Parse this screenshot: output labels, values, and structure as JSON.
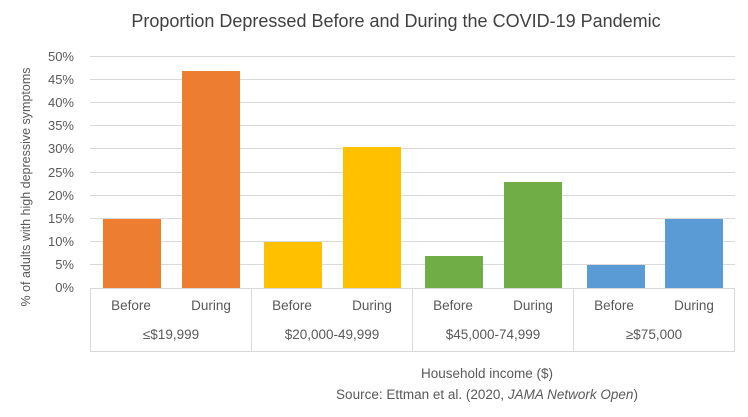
{
  "chart": {
    "title": "Proportion Depressed Before and During the COVID-19 Pandemic",
    "ylabel": "% of adults with high depressive symptoms",
    "xlabel": "Household income ($)",
    "source_prefix": "Source: Ettman et al. (2020, ",
    "source_italic": "JAMA Network Open",
    "source_suffix": ")"
  },
  "chart_data": {
    "type": "bar",
    "title": "Proportion Depressed Before and During the COVID-19 Pandemic",
    "xlabel": "Household income ($)",
    "ylabel": "% of adults with high depressive symptoms",
    "source": "Source: Ettman et al. (2020, JAMA Network Open)",
    "ylim": [
      0,
      50
    ],
    "ytick_step": 5,
    "ytick_suffix": "%",
    "grid": true,
    "legend": "none",
    "categories": [
      "≤$19,999",
      "$20,000-49,999",
      "$45,000-74,999",
      "≥$75,000"
    ],
    "sub_categories": [
      "Before",
      "During"
    ],
    "series": [
      {
        "name": "Before",
        "values": [
          15,
          10,
          7,
          5
        ]
      },
      {
        "name": "During",
        "values": [
          47,
          30.5,
          23,
          15
        ]
      }
    ],
    "category_colors": [
      "#ED7D31",
      "#FFC000",
      "#70AD47",
      "#5B9BD5"
    ]
  },
  "colors": {
    "gridline": "#D9D9D9",
    "axis_box_border": "#D9D9D9",
    "axis_text": "#595959",
    "title_text": "#404040",
    "background": "#FFFFFF"
  }
}
